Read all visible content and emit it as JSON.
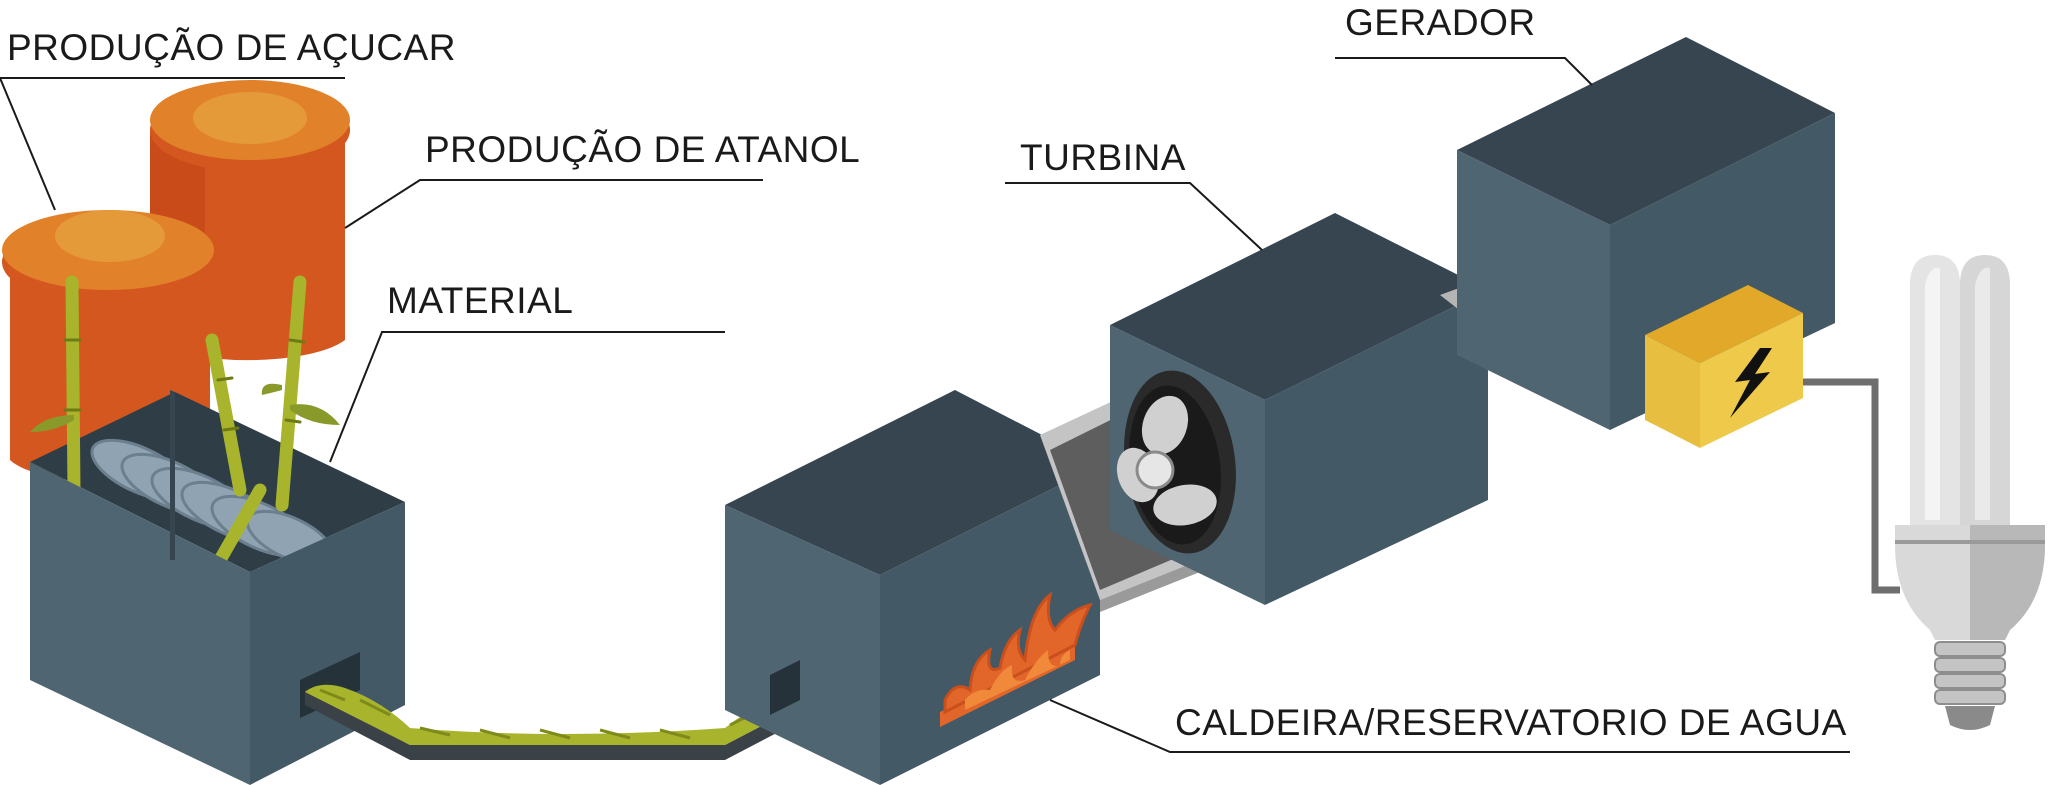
{
  "labels": {
    "sugar": "PRODUÇÃO DE AÇUCAR",
    "ethanol": "PRODUÇÃO DE ATANOL",
    "material": "MATERIAL",
    "turbine": "TURBINA",
    "generator": "GERADOR",
    "boiler": "CALDEIRA/RESERVATORIO DE AGUA"
  },
  "colors": {
    "box_top": "#36454f",
    "box_left": "#4f6672",
    "box_right": "#435966",
    "tank_orange": "#e1822a",
    "tank_side": "#d4571f",
    "bagasse": "#a8b42c",
    "fire": "#e2662a",
    "junction_box": "#eec94a",
    "bulb": "#d9d9d9"
  },
  "icons": [
    "sugarcane-icon",
    "fan-icon",
    "fire-icon",
    "lightning-bolt-icon",
    "light-bulb-icon"
  ]
}
